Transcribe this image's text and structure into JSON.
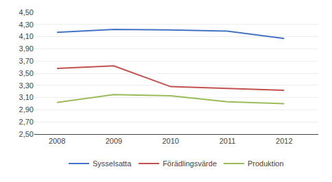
{
  "chart_data": {
    "type": "line",
    "x": [
      2008,
      2009,
      2010,
      2011,
      2012
    ],
    "series": [
      {
        "name": "Sysselsatta",
        "color": "#4472C4",
        "values": [
          4.17,
          4.22,
          4.21,
          4.19,
          4.07
        ]
      },
      {
        "name": "Förädlingsvärde",
        "color": "#C0504D",
        "values": [
          3.58,
          3.62,
          3.28,
          3.25,
          3.22
        ]
      },
      {
        "name": "Produktion",
        "color": "#9BBB59",
        "values": [
          3.02,
          3.15,
          3.13,
          3.03,
          3.0
        ]
      }
    ],
    "xlim": [
      2007.6,
      2012.6
    ],
    "xticks": [
      2008,
      2009,
      2010,
      2011,
      2012
    ],
    "ylim": [
      2.5,
      4.5
    ],
    "yticks": [
      {
        "value": 2.5,
        "label": "2,50"
      },
      {
        "value": 2.7,
        "label": "2,70"
      },
      {
        "value": 2.9,
        "label": "2,90"
      },
      {
        "value": 3.1,
        "label": "3,10"
      },
      {
        "value": 3.3,
        "label": "3,30"
      },
      {
        "value": 3.5,
        "label": "3,50"
      },
      {
        "value": 3.7,
        "label": "3,70"
      },
      {
        "value": 3.9,
        "label": "3,90"
      },
      {
        "value": 4.1,
        "label": "4,10"
      },
      {
        "value": 4.3,
        "label": "4,30"
      },
      {
        "value": 4.5,
        "label": "4,50"
      }
    ],
    "grid": "y",
    "legend": "bottom"
  }
}
